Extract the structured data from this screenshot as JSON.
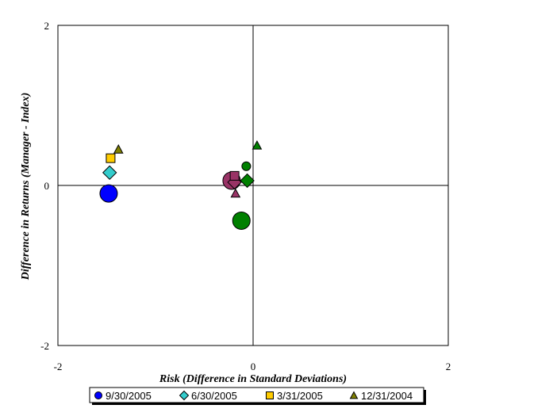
{
  "chart_data": {
    "type": "scatter",
    "title": "",
    "xlabel": "Risk (Difference in Standard Deviations)",
    "ylabel": "Difference in Returns (Manager - Index)",
    "xlim": [
      -2,
      2
    ],
    "ylim": [
      -2,
      2
    ],
    "x_ticks": [
      -2,
      0,
      2
    ],
    "y_ticks": [
      -2,
      0,
      2
    ],
    "x_tick_labels": [
      "-2",
      "0",
      "2"
    ],
    "y_tick_labels": [
      "-2",
      "0",
      "2"
    ],
    "grid": false,
    "zero_lines": true,
    "legend_position": "bottom-center",
    "series": [
      {
        "name": "9/30/2005",
        "marker": "circle",
        "color": "#0000FF",
        "points": [
          {
            "x": -1.48,
            "y": -0.1,
            "size": "large"
          },
          {
            "x": -0.22,
            "y": 0.06,
            "size": "large",
            "color": "#993366"
          },
          {
            "x": -0.12,
            "y": -0.44,
            "size": "large",
            "color": "#008000"
          },
          {
            "x": -0.07,
            "y": 0.24,
            "size": "small",
            "color": "#008000"
          }
        ]
      },
      {
        "name": "6/30/2005",
        "marker": "diamond",
        "color": "#33CCCC",
        "points": [
          {
            "x": -1.47,
            "y": 0.16,
            "size": "medium"
          },
          {
            "x": -0.19,
            "y": 0.04,
            "size": "medium",
            "color": "#993366"
          },
          {
            "x": -0.06,
            "y": 0.06,
            "size": "medium",
            "color": "#008000"
          }
        ]
      },
      {
        "name": "3/31/2005",
        "marker": "square",
        "color": "#FFCC00",
        "points": [
          {
            "x": -1.46,
            "y": 0.34,
            "size": "small"
          },
          {
            "x": -0.19,
            "y": 0.12,
            "size": "small",
            "color": "#993366"
          }
        ]
      },
      {
        "name": "12/31/2004",
        "marker": "triangle",
        "color": "#808000",
        "points": [
          {
            "x": -1.38,
            "y": 0.45,
            "size": "small"
          },
          {
            "x": -0.18,
            "y": -0.1,
            "size": "small",
            "color": "#993366"
          },
          {
            "x": 0.04,
            "y": 0.5,
            "size": "small",
            "color": "#008000"
          }
        ]
      }
    ]
  }
}
